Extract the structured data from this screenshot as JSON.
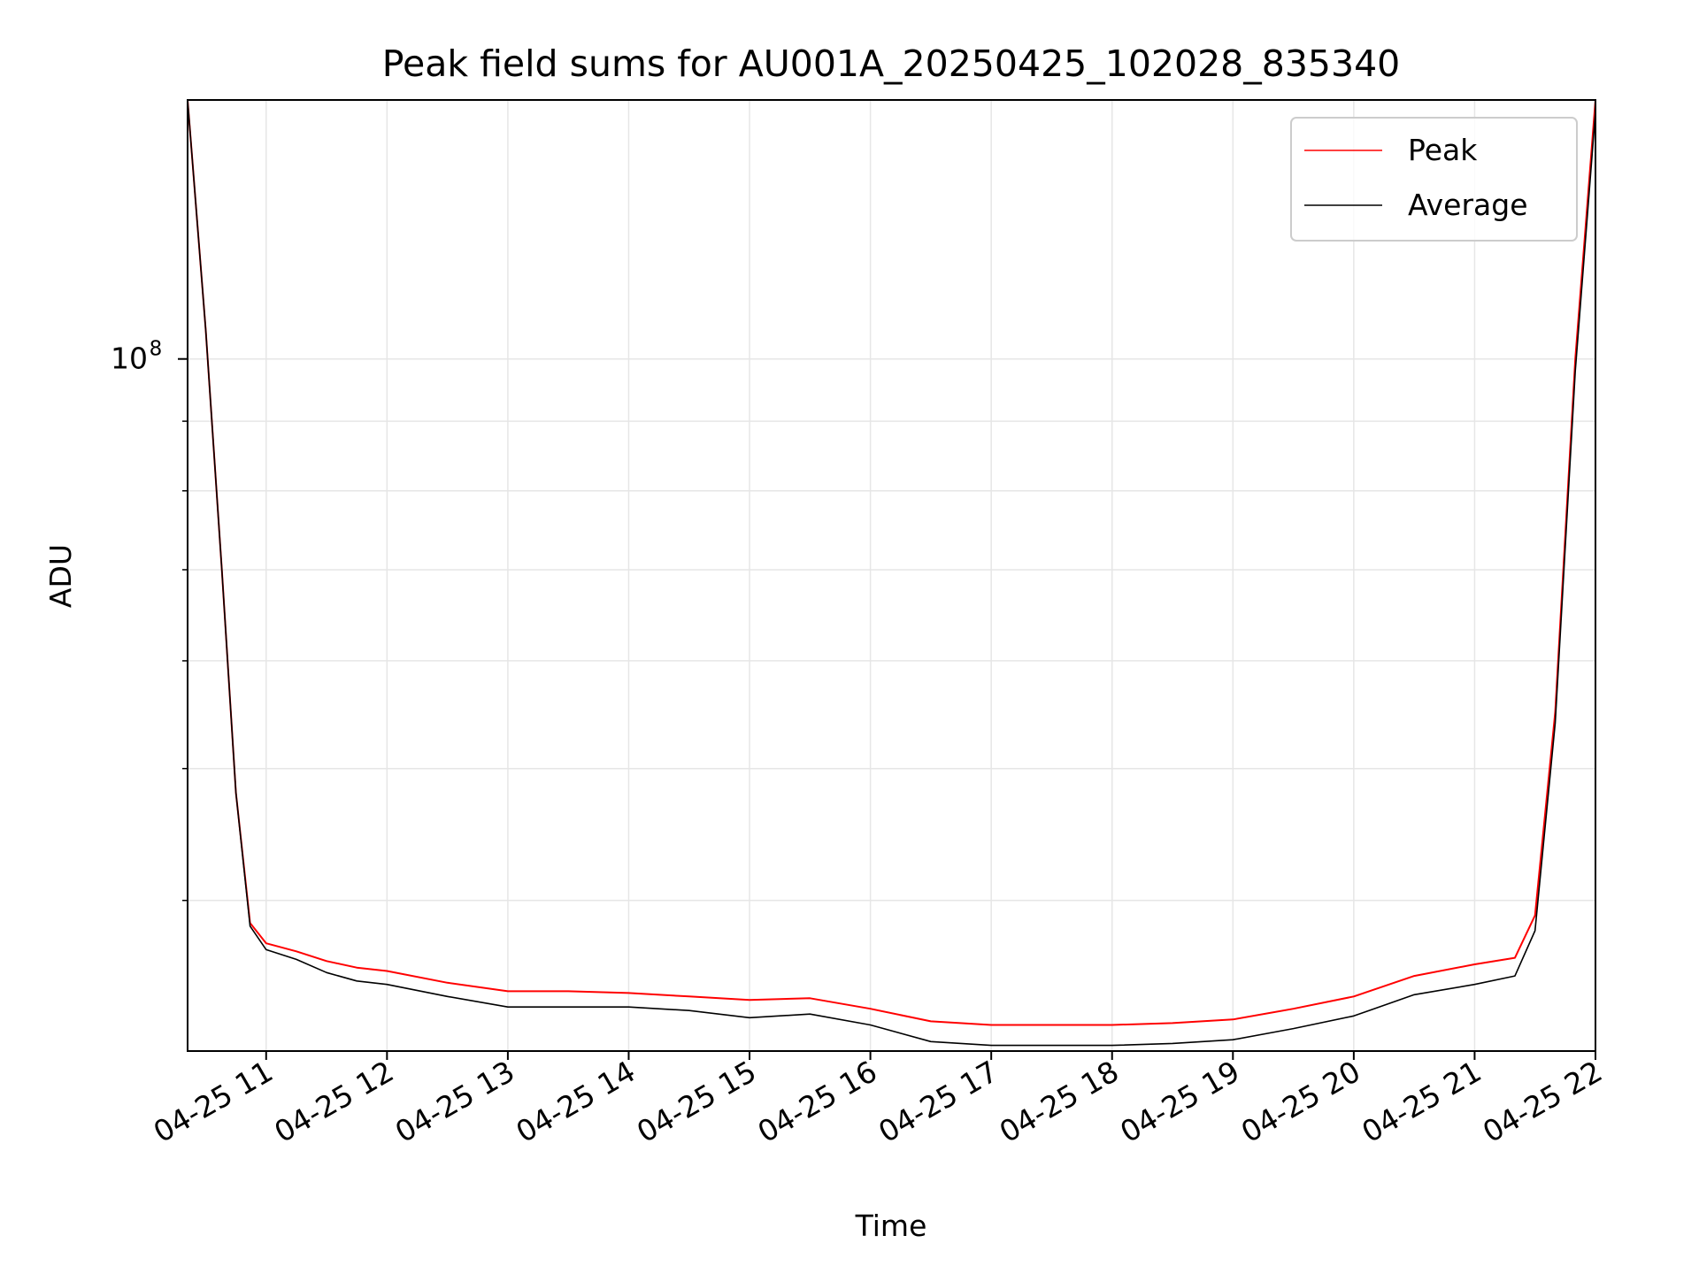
{
  "chart_data": {
    "type": "line",
    "title": "Peak field sums for AU001A_20250425_102028_835340",
    "xlabel": "Time",
    "ylabel": "ADU",
    "yscale": "log",
    "xlim": [
      "2025-04-25 10:21",
      "2025-04-25 22:00"
    ],
    "ylim": [
      31000000,
      155000000
    ],
    "x_ticks": [
      "2025-04-25 11:00",
      "2025-04-25 12:00",
      "2025-04-25 13:00",
      "2025-04-25 14:00",
      "2025-04-25 15:00",
      "2025-04-25 16:00",
      "2025-04-25 17:00",
      "2025-04-25 18:00",
      "2025-04-25 19:00",
      "2025-04-25 20:00",
      "2025-04-25 21:00",
      "2025-04-25 22:00"
    ],
    "x_tick_labels": [
      "04-25 11",
      "04-25 12",
      "04-25 13",
      "04-25 14",
      "04-25 15",
      "04-25 16",
      "04-25 17",
      "04-25 18",
      "04-25 19",
      "04-25 20",
      "04-25 21",
      "04-25 22"
    ],
    "y_major_tick_labels": [
      {
        "value": 100000000,
        "base": "10",
        "exp": "8"
      }
    ],
    "y_minor_ticks": [
      40000000,
      50000000,
      60000000,
      70000000,
      80000000,
      90000000
    ],
    "grid": true,
    "legend_position": "top-right",
    "series": [
      {
        "name": "Peak",
        "color": "#ff0000",
        "x": [
          "2025-04-25 10:21",
          "2025-04-25 10:30",
          "2025-04-25 10:38",
          "2025-04-25 10:45",
          "2025-04-25 10:52",
          "2025-04-25 11:00",
          "2025-04-25 11:15",
          "2025-04-25 11:30",
          "2025-04-25 11:45",
          "2025-04-25 12:00",
          "2025-04-25 12:30",
          "2025-04-25 13:00",
          "2025-04-25 13:30",
          "2025-04-25 14:00",
          "2025-04-25 14:30",
          "2025-04-25 15:00",
          "2025-04-25 15:30",
          "2025-04-25 16:00",
          "2025-04-25 16:30",
          "2025-04-25 17:00",
          "2025-04-25 17:30",
          "2025-04-25 18:00",
          "2025-04-25 18:30",
          "2025-04-25 19:00",
          "2025-04-25 19:30",
          "2025-04-25 20:00",
          "2025-04-25 20:30",
          "2025-04-25 21:00",
          "2025-04-25 21:20",
          "2025-04-25 21:30",
          "2025-04-25 21:40",
          "2025-04-25 21:50",
          "2025-04-25 22:00"
        ],
        "y": [
          155000000,
          105000000,
          70000000,
          48000000,
          38500000,
          37200000,
          36700000,
          36100000,
          35700000,
          35500000,
          34800000,
          34300000,
          34300000,
          34200000,
          34000000,
          33800000,
          33900000,
          33300000,
          32600000,
          32400000,
          32400000,
          32400000,
          32500000,
          32700000,
          33300000,
          34000000,
          35200000,
          35900000,
          36300000,
          39000000,
          55000000,
          100000000,
          155000000
        ]
      },
      {
        "name": "Average",
        "color": "#000000",
        "x": [
          "2025-04-25 10:21",
          "2025-04-25 10:30",
          "2025-04-25 10:38",
          "2025-04-25 10:45",
          "2025-04-25 10:52",
          "2025-04-25 11:00",
          "2025-04-25 11:15",
          "2025-04-25 11:30",
          "2025-04-25 11:45",
          "2025-04-25 12:00",
          "2025-04-25 12:30",
          "2025-04-25 13:00",
          "2025-04-25 13:30",
          "2025-04-25 14:00",
          "2025-04-25 14:30",
          "2025-04-25 15:00",
          "2025-04-25 15:30",
          "2025-04-25 16:00",
          "2025-04-25 16:30",
          "2025-04-25 17:00",
          "2025-04-25 17:30",
          "2025-04-25 18:00",
          "2025-04-25 18:30",
          "2025-04-25 19:00",
          "2025-04-25 19:30",
          "2025-04-25 20:00",
          "2025-04-25 20:30",
          "2025-04-25 21:00",
          "2025-04-25 21:20",
          "2025-04-25 21:30",
          "2025-04-25 21:40",
          "2025-04-25 21:50",
          "2025-04-25 22:00"
        ],
        "y": [
          155000000,
          105000000,
          70000000,
          48000000,
          38300000,
          36800000,
          36200000,
          35400000,
          34900000,
          34700000,
          34000000,
          33400000,
          33400000,
          33400000,
          33200000,
          32800000,
          33000000,
          32400000,
          31500000,
          31300000,
          31300000,
          31300000,
          31400000,
          31600000,
          32200000,
          32900000,
          34100000,
          34700000,
          35200000,
          38000000,
          54000000,
          98000000,
          152000000
        ]
      }
    ]
  }
}
